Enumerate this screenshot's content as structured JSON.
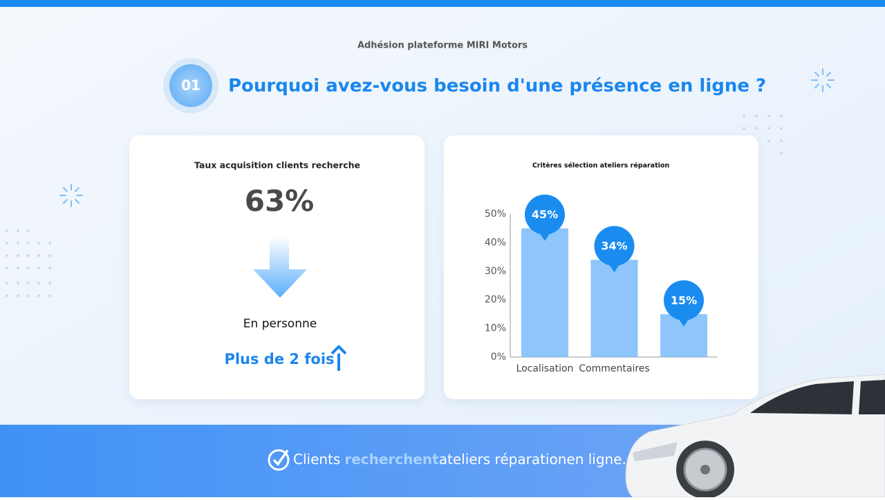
{
  "header": {
    "subtitle": "Adhésion plateforme MIRI Motors",
    "number": "01",
    "title": "Pourquoi avez-vous besoin d'une présence en ligne ?"
  },
  "left_card": {
    "title": "Taux acquisition clients recherche",
    "stat": "63%",
    "label": "En personne",
    "highlight": "Plus de 2 fois"
  },
  "chart_data": {
    "type": "bar",
    "title": "Critères sélection ateliers réparation",
    "categories": [
      "Localisation",
      "Commentaires",
      null
    ],
    "values": [
      45,
      34,
      15
    ],
    "value_labels": [
      "45%",
      "34%",
      "15%"
    ],
    "color": "#8ec5fb",
    "label_color": "#1a8cf0",
    "ylim": [
      0,
      50
    ],
    "yticks": [
      {
        "value": 0,
        "label": "0%"
      },
      {
        "value": 10,
        "label": "10%"
      },
      {
        "value": 20,
        "label": "20%"
      },
      {
        "value": 30,
        "label": "30%"
      },
      {
        "value": 40,
        "label": "40%"
      },
      {
        "value": 50,
        "label": "50%"
      }
    ]
  },
  "footer": {
    "parts": [
      "Clients",
      "recherchent",
      "ateliers réparationen ligne."
    ]
  }
}
